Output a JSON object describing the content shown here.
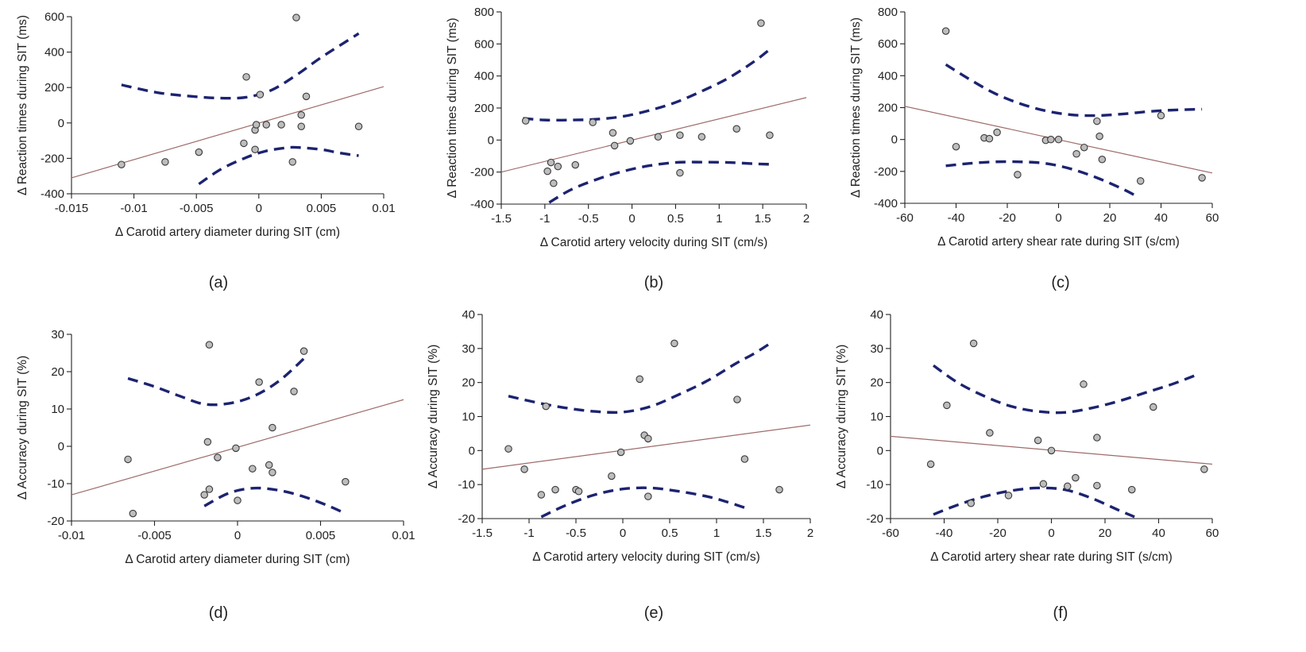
{
  "chart_data": [
    {
      "id": "a",
      "type": "scatter",
      "panel_label": "(a)",
      "xlabel": "Δ Carotid artery diameter during SIT (cm)",
      "ylabel": "Δ Reaction times during SIT (ms)",
      "xlim": [
        -0.015,
        0.01
      ],
      "ylim": [
        -400,
        600
      ],
      "xticks": [
        -0.015,
        -0.01,
        -0.005,
        0,
        0.005,
        0.01
      ],
      "xtick_labels": [
        "-0.015",
        "-0.01",
        "-0.005",
        "0",
        "0.005",
        "0.01"
      ],
      "yticks": [
        -400,
        -200,
        0,
        200,
        400,
        600
      ],
      "ytick_labels": [
        "-400",
        "-200",
        "0",
        "200",
        "400",
        "600"
      ],
      "points": [
        [
          -0.011,
          -235
        ],
        [
          -0.0075,
          -220
        ],
        [
          -0.0048,
          -165
        ],
        [
          -0.0012,
          -115
        ],
        [
          -0.001,
          260
        ],
        [
          -0.0003,
          -150
        ],
        [
          -0.0003,
          -40
        ],
        [
          -0.0002,
          -10
        ],
        [
          0.0001,
          160
        ],
        [
          0.0006,
          -10
        ],
        [
          0.0018,
          -10
        ],
        [
          0.0027,
          -220
        ],
        [
          0.003,
          595
        ],
        [
          0.0034,
          -20
        ],
        [
          0.0034,
          45
        ],
        [
          0.0038,
          150
        ],
        [
          0.008,
          -20
        ]
      ],
      "fit": {
        "x": [
          -0.015,
          0.01
        ],
        "y": [
          -310,
          205
        ]
      },
      "ci_upper": {
        "x": [
          -0.011,
          -0.008,
          -0.005,
          -0.003,
          -0.001,
          0.001,
          0.003,
          0.005,
          0.008
        ],
        "y": [
          215,
          170,
          148,
          140,
          145,
          185,
          270,
          370,
          505
        ]
      },
      "ci_lower": {
        "x": [
          -0.0048,
          -0.003,
          -0.001,
          0.0005,
          0.002,
          0.003,
          0.005,
          0.0065,
          0.008
        ],
        "y": [
          -345,
          -260,
          -195,
          -160,
          -142,
          -138,
          -150,
          -170,
          -185
        ]
      }
    },
    {
      "id": "b",
      "type": "scatter",
      "panel_label": "(b)",
      "xlabel": "Δ Carotid artery velocity during SIT (cm/s)",
      "ylabel": "Δ Reaction times during SIT (ms)",
      "xlim": [
        -1.5,
        2
      ],
      "ylim": [
        -400,
        800
      ],
      "xticks": [
        -1.5,
        -1,
        -0.5,
        0,
        0.5,
        1,
        1.5,
        2
      ],
      "xtick_labels": [
        "-1.5",
        "-1",
        "-0.5",
        "0",
        "0.5",
        "1",
        "1.5",
        "2"
      ],
      "yticks": [
        -400,
        -200,
        0,
        200,
        400,
        600,
        800
      ],
      "ytick_labels": [
        "-400",
        "-200",
        "0",
        "200",
        "400",
        "600",
        "800"
      ],
      "points": [
        [
          -1.22,
          120
        ],
        [
          -0.97,
          -195
        ],
        [
          -0.93,
          -140
        ],
        [
          -0.9,
          -270
        ],
        [
          -0.85,
          -165
        ],
        [
          -0.65,
          -155
        ],
        [
          -0.45,
          110
        ],
        [
          -0.22,
          45
        ],
        [
          -0.2,
          -35
        ],
        [
          -0.02,
          -5
        ],
        [
          0.3,
          20
        ],
        [
          0.55,
          30
        ],
        [
          0.55,
          -205
        ],
        [
          0.8,
          20
        ],
        [
          1.2,
          70
        ],
        [
          1.48,
          730
        ],
        [
          1.58,
          30
        ]
      ],
      "fit": {
        "x": [
          -1.5,
          2
        ],
        "y": [
          -200,
          265
        ]
      },
      "ci_upper": {
        "x": [
          -1.25,
          -1,
          -0.7,
          -0.4,
          -0.1,
          0.2,
          0.5,
          0.8,
          1.1,
          1.4,
          1.6
        ],
        "y": [
          135,
          125,
          125,
          130,
          148,
          185,
          235,
          305,
          385,
          490,
          575
        ]
      },
      "ci_lower": {
        "x": [
          -0.95,
          -0.7,
          -0.4,
          -0.1,
          0.2,
          0.5,
          0.8,
          1.1,
          1.4,
          1.6
        ],
        "y": [
          -390,
          -310,
          -245,
          -195,
          -160,
          -140,
          -138,
          -140,
          -148,
          -152
        ]
      }
    },
    {
      "id": "c",
      "type": "scatter",
      "panel_label": "(c)",
      "xlabel": "Δ Carotid artery shear rate during SIT (s/cm)",
      "ylabel": "Δ Reaction times during SIT (ms)",
      "xlim": [
        -60,
        60
      ],
      "ylim": [
        -400,
        800
      ],
      "xticks": [
        -60,
        -40,
        -20,
        0,
        20,
        40,
        60
      ],
      "xtick_labels": [
        "-60",
        "-40",
        "-20",
        "0",
        "20",
        "40",
        "60"
      ],
      "yticks": [
        -400,
        -200,
        0,
        200,
        400,
        600,
        800
      ],
      "ytick_labels": [
        "-400",
        "-200",
        "0",
        "200",
        "400",
        "600",
        "800"
      ],
      "points": [
        [
          -44,
          680
        ],
        [
          -40,
          -45
        ],
        [
          -29,
          10
        ],
        [
          -27,
          5
        ],
        [
          -24,
          45
        ],
        [
          -16,
          -220
        ],
        [
          -5,
          -5
        ],
        [
          -3,
          0
        ],
        [
          0,
          0
        ],
        [
          7,
          -90
        ],
        [
          10,
          -50
        ],
        [
          15,
          115
        ],
        [
          16,
          20
        ],
        [
          17,
          -125
        ],
        [
          32,
          -260
        ],
        [
          40,
          150
        ],
        [
          56,
          -240
        ]
      ],
      "fit": {
        "x": [
          -60,
          60
        ],
        "y": [
          208,
          -210
        ]
      },
      "ci_upper": {
        "x": [
          -44,
          -35,
          -25,
          -15,
          -5,
          5,
          15,
          25,
          35,
          45,
          56
        ],
        "y": [
          470,
          380,
          290,
          225,
          180,
          155,
          150,
          160,
          175,
          185,
          190
        ]
      },
      "ci_lower": {
        "x": [
          -44,
          -35,
          -25,
          -15,
          -5,
          5,
          15,
          25,
          31
        ],
        "y": [
          -165,
          -150,
          -140,
          -140,
          -150,
          -185,
          -240,
          -310,
          -360
        ]
      }
    },
    {
      "id": "d",
      "type": "scatter",
      "panel_label": "(d)",
      "xlabel": "Δ Carotid artery diameter during SIT (cm)",
      "ylabel": "Δ Accuracy during SIT (%)",
      "xlim": [
        -0.01,
        0.01
      ],
      "ylim": [
        -20,
        30
      ],
      "xticks": [
        -0.01,
        -0.005,
        0,
        0.005,
        0.01
      ],
      "xtick_labels": [
        "-0.01",
        "-0.005",
        "0",
        "0.005",
        "0.01"
      ],
      "yticks": [
        -20,
        -10,
        0,
        10,
        20,
        30
      ],
      "ytick_labels": [
        "-20",
        "-10",
        "0",
        "10",
        "20",
        "30"
      ],
      "points": [
        [
          -0.0066,
          -3.5
        ],
        [
          -0.0063,
          -18
        ],
        [
          -0.002,
          -13
        ],
        [
          -0.0018,
          1.2
        ],
        [
          -0.0017,
          -11.5
        ],
        [
          -0.0017,
          27.2
        ],
        [
          -0.0012,
          -3
        ],
        [
          -0.0001,
          -0.5
        ],
        [
          0,
          -14.5
        ],
        [
          0.0009,
          -6
        ],
        [
          0.0013,
          17.2
        ],
        [
          0.0019,
          -5
        ],
        [
          0.0021,
          -7
        ],
        [
          0.0021,
          5
        ],
        [
          0.0034,
          14.7
        ],
        [
          0.004,
          25.5
        ],
        [
          0.0065,
          -9.5
        ]
      ],
      "fit": {
        "x": [
          -0.01,
          0.01
        ],
        "y": [
          -13,
          12.5
        ]
      },
      "ci_upper": {
        "x": [
          -0.0066,
          -0.005,
          -0.0035,
          -0.002,
          -0.0005,
          0.001,
          0.0025,
          0.004
        ],
        "y": [
          18.2,
          16,
          13.5,
          11.3,
          11.5,
          13.5,
          17.5,
          23.5
        ]
      },
      "ci_lower": {
        "x": [
          -0.002,
          -0.0005,
          0.001,
          0.0025,
          0.004,
          0.0055,
          0.0065
        ],
        "y": [
          -16,
          -12.5,
          -11.2,
          -11.8,
          -13.5,
          -16,
          -18
        ]
      }
    },
    {
      "id": "e",
      "type": "scatter",
      "panel_label": "(e)",
      "xlabel": "Δ Carotid artery velocity during SIT (cm/s)",
      "ylabel": "Δ Accuracy during SIT (%)",
      "xlim": [
        -1.5,
        2
      ],
      "ylim": [
        -20,
        40
      ],
      "xticks": [
        -1.5,
        -1,
        -0.5,
        0,
        0.5,
        1,
        1.5,
        2
      ],
      "xtick_labels": [
        "-1.5",
        "-1",
        "-0.5",
        "0",
        "0.5",
        "1",
        "1.5",
        "2"
      ],
      "yticks": [
        -20,
        -10,
        0,
        10,
        20,
        30,
        40
      ],
      "ytick_labels": [
        "-20",
        "-10",
        "0",
        "10",
        "20",
        "30",
        "40"
      ],
      "points": [
        [
          -1.22,
          0.5
        ],
        [
          -1.05,
          -5.5
        ],
        [
          -0.87,
          -13
        ],
        [
          -0.82,
          13
        ],
        [
          -0.72,
          -11.5
        ],
        [
          -0.5,
          -11.5
        ],
        [
          -0.47,
          -12
        ],
        [
          -0.12,
          -7.5
        ],
        [
          -0.02,
          -0.5
        ],
        [
          0.18,
          21
        ],
        [
          0.23,
          4.5
        ],
        [
          0.27,
          3.5
        ],
        [
          0.27,
          -13.5
        ],
        [
          0.55,
          31.5
        ],
        [
          1.22,
          15
        ],
        [
          1.3,
          -2.5
        ],
        [
          1.67,
          -11.5
        ]
      ],
      "fit": {
        "x": [
          -1.5,
          2
        ],
        "y": [
          -5.5,
          7.5
        ]
      },
      "ci_upper": {
        "x": [
          -1.22,
          -0.9,
          -0.6,
          -0.3,
          0,
          0.3,
          0.6,
          0.9,
          1.2,
          1.4,
          1.6
        ],
        "y": [
          16,
          14,
          12.5,
          11.5,
          11.3,
          13,
          16.5,
          20.5,
          25.5,
          28.5,
          32
        ]
      },
      "ci_lower": {
        "x": [
          -0.87,
          -0.6,
          -0.3,
          0,
          0.3,
          0.6,
          0.9,
          1.1,
          1.3
        ],
        "y": [
          -19.5,
          -16,
          -13,
          -11.3,
          -11,
          -12,
          -13.5,
          -15,
          -16.8
        ]
      }
    },
    {
      "id": "f",
      "type": "scatter",
      "panel_label": "(f)",
      "xlabel": "Δ Carotid artery shear rate during SIT (s/cm)",
      "ylabel": "Δ Accuracy during SIT (%)",
      "xlim": [
        -60,
        60
      ],
      "ylim": [
        -20,
        40
      ],
      "xticks": [
        -60,
        -40,
        -20,
        0,
        20,
        40,
        60
      ],
      "xtick_labels": [
        "-60",
        "-40",
        "-20",
        "0",
        "20",
        "40",
        "60"
      ],
      "yticks": [
        -20,
        -10,
        0,
        10,
        20,
        30,
        40
      ],
      "ytick_labels": [
        "-20",
        "-10",
        "0",
        "10",
        "20",
        "30",
        "40"
      ],
      "points": [
        [
          -45,
          -4
        ],
        [
          -39,
          13.3
        ],
        [
          -30,
          -15.5
        ],
        [
          -29,
          31.5
        ],
        [
          -23,
          5.2
        ],
        [
          -16,
          -13.2
        ],
        [
          -5,
          3
        ],
        [
          -3,
          -9.8
        ],
        [
          0,
          0
        ],
        [
          6,
          -10.5
        ],
        [
          9,
          -8
        ],
        [
          12,
          19.5
        ],
        [
          17,
          3.8
        ],
        [
          17,
          -10.3
        ],
        [
          30,
          -11.5
        ],
        [
          38,
          12.8
        ],
        [
          57,
          -5.5
        ]
      ],
      "fit": {
        "x": [
          -60,
          60
        ],
        "y": [
          4.2,
          -4
        ]
      },
      "ci_upper": {
        "x": [
          -44,
          -35,
          -25,
          -15,
          -5,
          5,
          15,
          25,
          35,
          45,
          55
        ],
        "y": [
          25,
          20,
          16,
          13,
          11.5,
          11.2,
          12.5,
          14.5,
          17,
          19.5,
          22.5
        ]
      },
      "ci_lower": {
        "x": [
          -44,
          -35,
          -25,
          -15,
          -5,
          5,
          15,
          25,
          31
        ],
        "y": [
          -18.8,
          -16,
          -13.5,
          -11.8,
          -11,
          -11.5,
          -14,
          -17.5,
          -19.5
        ]
      }
    }
  ]
}
